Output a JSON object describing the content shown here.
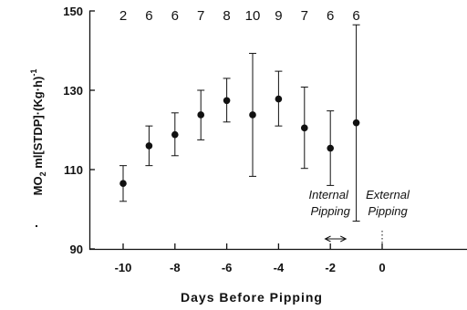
{
  "chart_data": {
    "type": "scatter",
    "xlabel": "Days Before Pipping",
    "ylabel": {
      "part1": "MO",
      "sub": "2",
      "part2": " ml[STDP]·(Kg·h)",
      "sup": "-1"
    },
    "xlim": [
      -11,
      1
    ],
    "ylim": [
      90,
      150
    ],
    "x_ticks": [
      -10,
      -8,
      -6,
      -4,
      -2,
      0
    ],
    "y_ticks": [
      90,
      110,
      130,
      150
    ],
    "grid": false,
    "points": [
      {
        "x": -10,
        "y": 106.5,
        "low": 102.0,
        "high": 111.0,
        "n": "2"
      },
      {
        "x": -9,
        "y": 116.0,
        "low": 111.0,
        "high": 121.0,
        "n": "6"
      },
      {
        "x": -8,
        "y": 118.8,
        "low": 113.5,
        "high": 124.3,
        "n": "6"
      },
      {
        "x": -7,
        "y": 123.8,
        "low": 117.5,
        "high": 130.0,
        "n": "7"
      },
      {
        "x": -6,
        "y": 127.4,
        "low": 122.0,
        "high": 133.0,
        "n": "8"
      },
      {
        "x": -5,
        "y": 123.8,
        "low": 108.3,
        "high": 139.3,
        "n": "10"
      },
      {
        "x": -4,
        "y": 127.8,
        "low": 121.0,
        "high": 134.8,
        "n": "9"
      },
      {
        "x": -3,
        "y": 120.5,
        "low": 110.3,
        "high": 130.8,
        "n": "7"
      },
      {
        "x": -2,
        "y": 115.4,
        "low": 106.0,
        "high": 124.8,
        "n": "6"
      },
      {
        "x": -1,
        "y": 121.8,
        "low": 97.0,
        "high": 146.5,
        "n": "6"
      }
    ],
    "annotations": [
      {
        "lines": [
          "Internal",
          "Pipping"
        ],
        "range": [
          -2.2,
          -1.4
        ]
      },
      {
        "lines": [
          "External",
          "Pipping"
        ],
        "at": 0
      }
    ]
  }
}
